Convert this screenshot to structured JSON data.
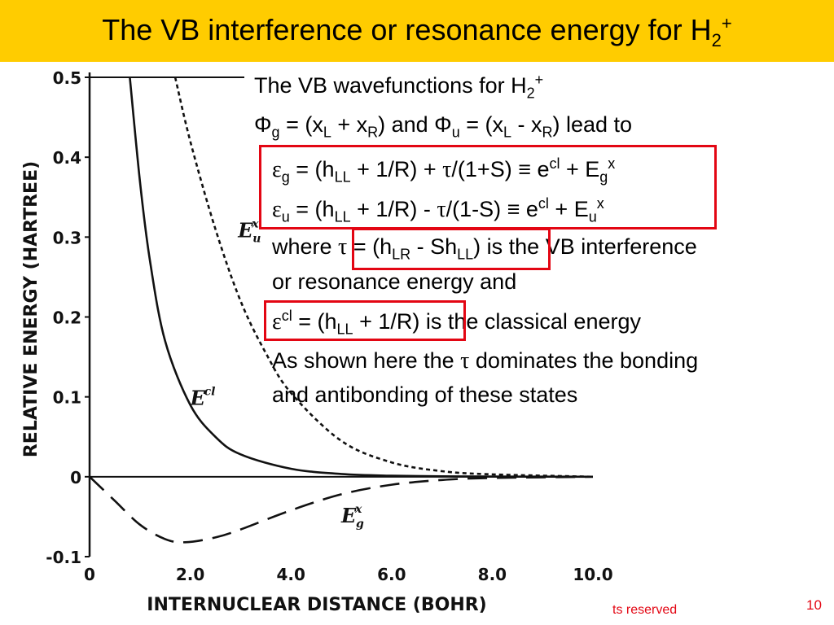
{
  "slide": {
    "title": {
      "main": "The VB interference or resonance energy for H",
      "sub": "2",
      "sup": "+"
    },
    "page_number": "10",
    "copyright_fragment": "ts reserved"
  },
  "colors": {
    "title_bar": "#ffcc00",
    "highlight_box": "#e30613",
    "text": "#000000"
  },
  "text": {
    "line1": {
      "a": "The VB wavefunctions for H",
      "sub": "2",
      "sup": "+"
    },
    "line2": {
      "phi1": "Φ",
      "g": "g",
      "a": " = (x",
      "L1": "L",
      "b": " + x",
      "R1": "R",
      "c": ") and ",
      "phi2": "Φ",
      "u": "u",
      "d": " = (x",
      "L2": "L",
      "e": " - x",
      "R2": "R",
      "f": ") lead to"
    },
    "eq_g": {
      "eps": "ε",
      "g": "g",
      "a": " = (h",
      "LL": "LL",
      "b": " + 1/R) + ",
      "tau": "τ",
      "c": "/(1+S) ≡ e",
      "cl": "cl",
      "d": " + E",
      "g2": "g",
      "x": "x"
    },
    "eq_u": {
      "eps": "ε",
      "u": "u",
      "a": " = (h",
      "LL": "LL",
      "b": " + 1/R) - ",
      "tau": "τ",
      "c": "/(1-S) ≡ e",
      "cl": "cl",
      "d": " + E",
      "u2": "u",
      "x": "x"
    },
    "where": {
      "a": "where ",
      "tau": "τ",
      "b": " = (h",
      "LR": "LR",
      "c": " - Sh",
      "LL": "LL",
      "d": ") is the VB interference"
    },
    "line_resonance": "or resonance energy and",
    "classical": {
      "eps": "ε",
      "cl": "cl",
      "a": " = (h",
      "LL": "LL",
      "b": " + 1/R) is the classical energy"
    },
    "shown1": {
      "a": "As shown here the ",
      "tau": "τ",
      "b": " dominates the bonding"
    },
    "shown2": "and antibonding of these states"
  },
  "chart_data": {
    "type": "line",
    "xlabel": "INTERNUCLEAR DISTANCE (BOHR)",
    "ylabel": "RELATIVE ENERGY (HARTREE)",
    "xlim": [
      0,
      10
    ],
    "ylim": [
      -0.1,
      0.5
    ],
    "x_ticks": [
      "0",
      "2.0",
      "4.0",
      "6.0",
      "8.0",
      "10.0"
    ],
    "y_ticks": [
      "0.5",
      "0.4",
      "0.3",
      "0.2",
      "0.1",
      "0",
      "-0.1"
    ],
    "x_tick_values": [
      0,
      2,
      4,
      6,
      8,
      10
    ],
    "y_tick_values": [
      0.5,
      0.4,
      0.3,
      0.2,
      0.1,
      0,
      -0.1
    ],
    "grid": false,
    "series": [
      {
        "name": "Ecl",
        "label_main": "E",
        "label_sup": "cl",
        "style": "solid",
        "x": [
          0.8,
          1.0,
          1.2,
          1.5,
          2.0,
          2.5,
          3.0,
          4.0,
          5.0,
          6.0,
          7.0,
          8.0,
          10.0
        ],
        "y": [
          0.5,
          0.37,
          0.27,
          0.17,
          0.09,
          0.05,
          0.028,
          0.01,
          0.0035,
          0.0013,
          0.0005,
          0.0002,
          0.0
        ]
      },
      {
        "name": "Eux",
        "label_main": "E",
        "label_sub": "u",
        "label_sup": "x",
        "style": "dotted",
        "x": [
          1.7,
          2.0,
          2.5,
          3.0,
          3.5,
          4.0,
          5.0,
          6.0,
          7.0,
          8.0,
          10.0
        ],
        "y": [
          0.5,
          0.42,
          0.31,
          0.22,
          0.155,
          0.105,
          0.045,
          0.018,
          0.007,
          0.003,
          0.0
        ]
      },
      {
        "name": "Egx",
        "label_main": "E",
        "label_sub": "g",
        "label_sup": "x",
        "style": "dashed",
        "x": [
          0.0,
          0.5,
          1.0,
          1.5,
          1.9,
          2.5,
          3.0,
          4.0,
          5.0,
          6.0,
          7.0,
          8.0,
          10.0
        ],
        "y": [
          0.0,
          -0.03,
          -0.06,
          -0.078,
          -0.082,
          -0.076,
          -0.066,
          -0.042,
          -0.022,
          -0.01,
          -0.004,
          -0.0015,
          0.0
        ]
      }
    ]
  }
}
